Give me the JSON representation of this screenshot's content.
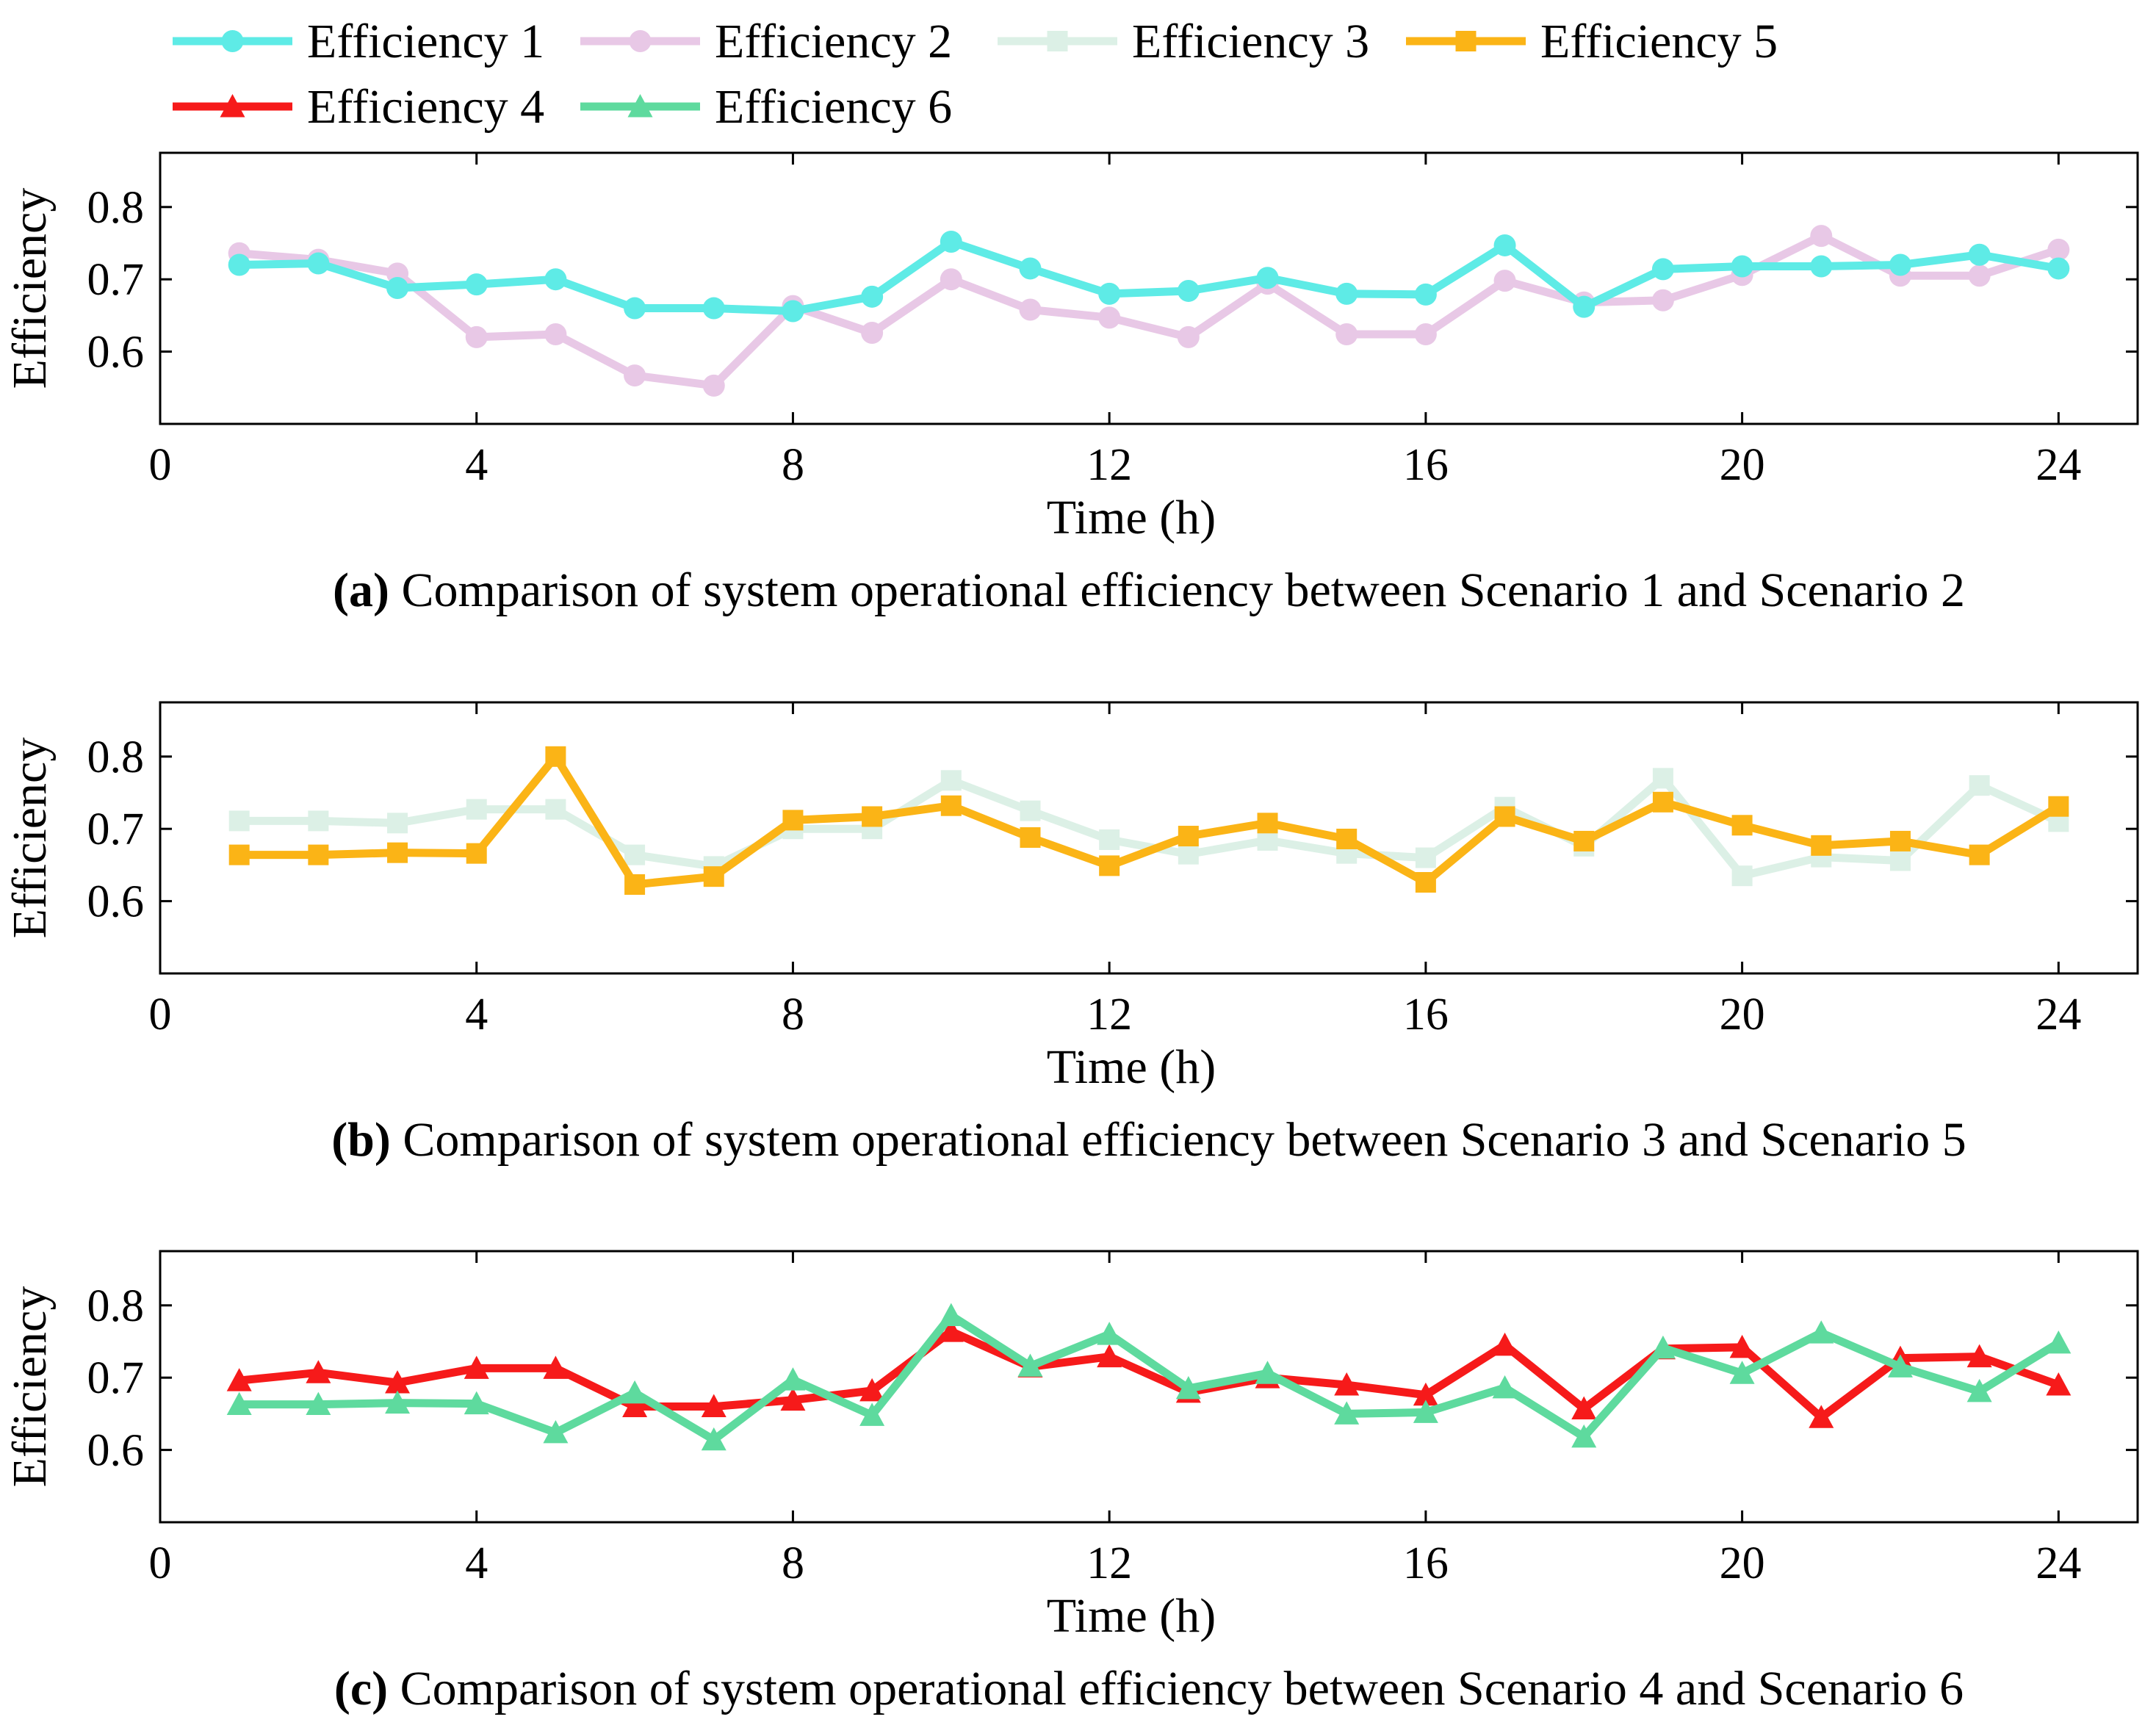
{
  "legend": [
    {
      "key": "e1",
      "label": "Efficiency 1",
      "color": "#5EEBE6",
      "marker": "circle"
    },
    {
      "key": "e2",
      "label": "Efficiency 2",
      "color": "#E8C8E6",
      "marker": "circle"
    },
    {
      "key": "e3",
      "label": "Efficiency 3",
      "color": "#DCF0E6",
      "marker": "square"
    },
    {
      "key": "e5",
      "label": "Efficiency 5",
      "color": "#FBB416",
      "marker": "square"
    },
    {
      "key": "e4",
      "label": "Efficiency 4",
      "color": "#F61A1A",
      "marker": "triangle"
    },
    {
      "key": "e6",
      "label": "Efficiency 6",
      "color": "#5EDA9E",
      "marker": "triangle"
    }
  ],
  "chart_data": [
    {
      "type": "line",
      "panel": "a",
      "caption_letter": "(a)",
      "caption_text": " Comparison of system operational efficiency between Scenario 1 and Scenario 2",
      "xlabel": "Time (h)",
      "ylabel": "Efficiency",
      "xlim": [
        0,
        25
      ],
      "ylim": [
        0.5,
        0.875
      ],
      "xticks": [
        0,
        4,
        8,
        12,
        16,
        20,
        24
      ],
      "yticks": [
        0.6,
        0.7,
        0.8
      ],
      "ytick_labels": [
        "0.6",
        "0.7",
        "0.8"
      ],
      "x": [
        1,
        2,
        3,
        4,
        5,
        6,
        7,
        8,
        9,
        10,
        11,
        12,
        13,
        14,
        15,
        16,
        17,
        18,
        19,
        20,
        21,
        22,
        23,
        24
      ],
      "series": [
        {
          "name": "Efficiency 2",
          "color": "#E8C8E6",
          "marker": "circle",
          "values": [
            0.736,
            0.727,
            0.708,
            0.62,
            0.624,
            0.567,
            0.553,
            0.663,
            0.626,
            0.7,
            0.658,
            0.647,
            0.62,
            0.694,
            0.624,
            0.624,
            0.698,
            0.668,
            0.671,
            0.706,
            0.76,
            0.705,
            0.705,
            0.741
          ]
        },
        {
          "name": "Efficiency 1",
          "color": "#5EEBE6",
          "marker": "circle",
          "values": [
            0.72,
            0.722,
            0.688,
            0.693,
            0.7,
            0.66,
            0.66,
            0.656,
            0.676,
            0.752,
            0.715,
            0.68,
            0.684,
            0.702,
            0.68,
            0.679,
            0.747,
            0.662,
            0.714,
            0.718,
            0.718,
            0.72,
            0.734,
            0.715
          ]
        }
      ]
    },
    {
      "type": "line",
      "panel": "b",
      "caption_letter": "(b)",
      "caption_text": " Comparison of system operational efficiency between Scenario 3 and Scenario 5",
      "xlabel": "Time (h)",
      "ylabel": "Efficiency",
      "xlim": [
        0,
        25
      ],
      "ylim": [
        0.5,
        0.875
      ],
      "xticks": [
        0,
        4,
        8,
        12,
        16,
        20,
        24
      ],
      "yticks": [
        0.6,
        0.7,
        0.8
      ],
      "ytick_labels": [
        "0.6",
        "0.7",
        "0.8"
      ],
      "x": [
        1,
        2,
        3,
        4,
        5,
        6,
        7,
        8,
        9,
        10,
        11,
        12,
        13,
        14,
        15,
        16,
        17,
        18,
        19,
        20,
        21,
        22,
        23,
        24
      ],
      "series": [
        {
          "name": "Efficiency 3",
          "color": "#DCF0E6",
          "marker": "square",
          "values": [
            0.711,
            0.711,
            0.708,
            0.727,
            0.727,
            0.664,
            0.648,
            0.7,
            0.7,
            0.767,
            0.725,
            0.685,
            0.665,
            0.684,
            0.666,
            0.66,
            0.73,
            0.676,
            0.77,
            0.635,
            0.661,
            0.656,
            0.76,
            0.71
          ]
        },
        {
          "name": "Efficiency 5",
          "color": "#FBB416",
          "marker": "square",
          "values": [
            0.664,
            0.664,
            0.667,
            0.666,
            0.8,
            0.623,
            0.634,
            0.712,
            0.717,
            0.732,
            0.688,
            0.649,
            0.69,
            0.708,
            0.686,
            0.626,
            0.717,
            0.683,
            0.737,
            0.705,
            0.677,
            0.683,
            0.664,
            0.731
          ]
        }
      ]
    },
    {
      "type": "line",
      "panel": "c",
      "caption_letter": "(c)",
      "caption_text": " Comparison of system operational efficiency between Scenario 4 and Scenario 6",
      "xlabel": "Time (h)",
      "ylabel": "Efficiency",
      "xlim": [
        0,
        25
      ],
      "ylim": [
        0.5,
        0.875
      ],
      "xticks": [
        0,
        4,
        8,
        12,
        16,
        20,
        24
      ],
      "yticks": [
        0.6,
        0.7,
        0.8
      ],
      "ytick_labels": [
        "0.6",
        "0.7",
        "0.8"
      ],
      "x": [
        1,
        2,
        3,
        4,
        5,
        6,
        7,
        8,
        9,
        10,
        11,
        12,
        13,
        14,
        15,
        16,
        17,
        18,
        19,
        20,
        21,
        22,
        23,
        24
      ],
      "series": [
        {
          "name": "Efficiency 4",
          "color": "#F61A1A",
          "marker": "triangle",
          "values": [
            0.696,
            0.707,
            0.693,
            0.713,
            0.713,
            0.66,
            0.66,
            0.669,
            0.682,
            0.764,
            0.715,
            0.729,
            0.68,
            0.7,
            0.69,
            0.676,
            0.745,
            0.657,
            0.74,
            0.742,
            0.645,
            0.727,
            0.729,
            0.69
          ]
        },
        {
          "name": "Efficiency 6",
          "color": "#5EDA9E",
          "marker": "triangle",
          "values": [
            0.663,
            0.663,
            0.665,
            0.664,
            0.624,
            0.679,
            0.614,
            0.697,
            0.648,
            0.786,
            0.716,
            0.76,
            0.685,
            0.706,
            0.65,
            0.652,
            0.686,
            0.618,
            0.741,
            0.706,
            0.762,
            0.715,
            0.681,
            0.748
          ]
        }
      ]
    }
  ]
}
